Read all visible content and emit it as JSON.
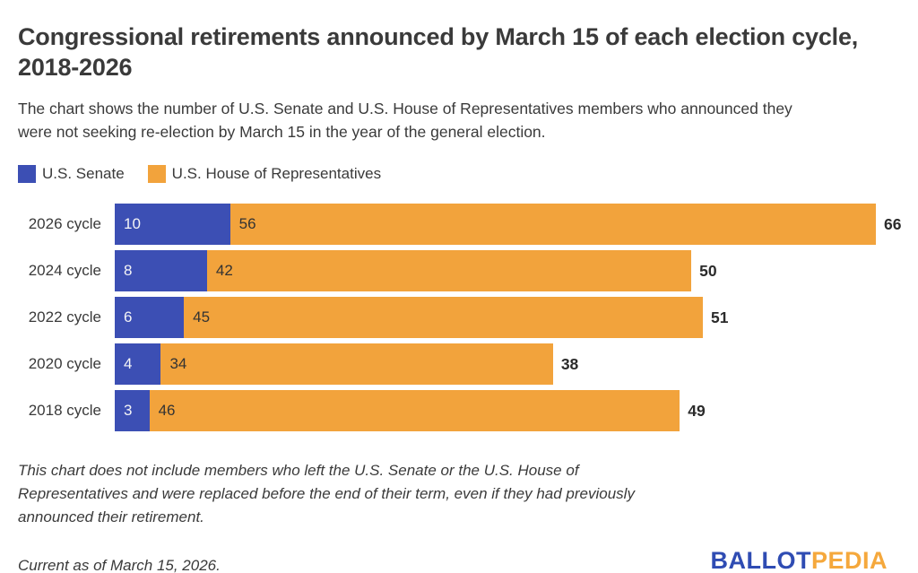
{
  "header": {
    "title": "Congressional retirements announced by March 15 of each election cycle, 2018-2026",
    "subtitle": "The chart shows the number of U.S. Senate and U.S. House of Representatives members who announced they were not seeking re-election by March 15 in the year of the general election."
  },
  "legend": [
    {
      "label": "U.S. Senate",
      "color": "#3c4fb4"
    },
    {
      "label": "U.S. House of Representatives",
      "color": "#f2a33c"
    }
  ],
  "chart_data": {
    "type": "bar",
    "orientation": "horizontal",
    "stacked": true,
    "categories": [
      "2026 cycle",
      "2024 cycle",
      "2022 cycle",
      "2020 cycle",
      "2018 cycle"
    ],
    "series": [
      {
        "name": "U.S. Senate",
        "color": "#3c4fb4",
        "values": [
          10,
          8,
          6,
          4,
          3
        ]
      },
      {
        "name": "U.S. House of Representatives",
        "color": "#f2a33c",
        "values": [
          56,
          42,
          45,
          34,
          46
        ]
      }
    ],
    "totals": [
      66,
      50,
      51,
      38,
      49
    ],
    "xlim": [
      0,
      66
    ],
    "grid": false,
    "legend_position": "top-left",
    "value_labels": "inside-start of each segment",
    "total_labels": "bold, outside right end of each bar"
  },
  "footnote": "This chart does not include members who left the U.S. Senate or the U.S. House of Representatives and were replaced before the end of their term, even if they had previously announced their retirement.",
  "footer": {
    "current_as_of": "Current as of March 15, 2026.",
    "logo": {
      "part1": "BALLOT",
      "part2": "PEDIA",
      "color1": "#2f4cb3",
      "color2": "#f5a83c"
    }
  }
}
